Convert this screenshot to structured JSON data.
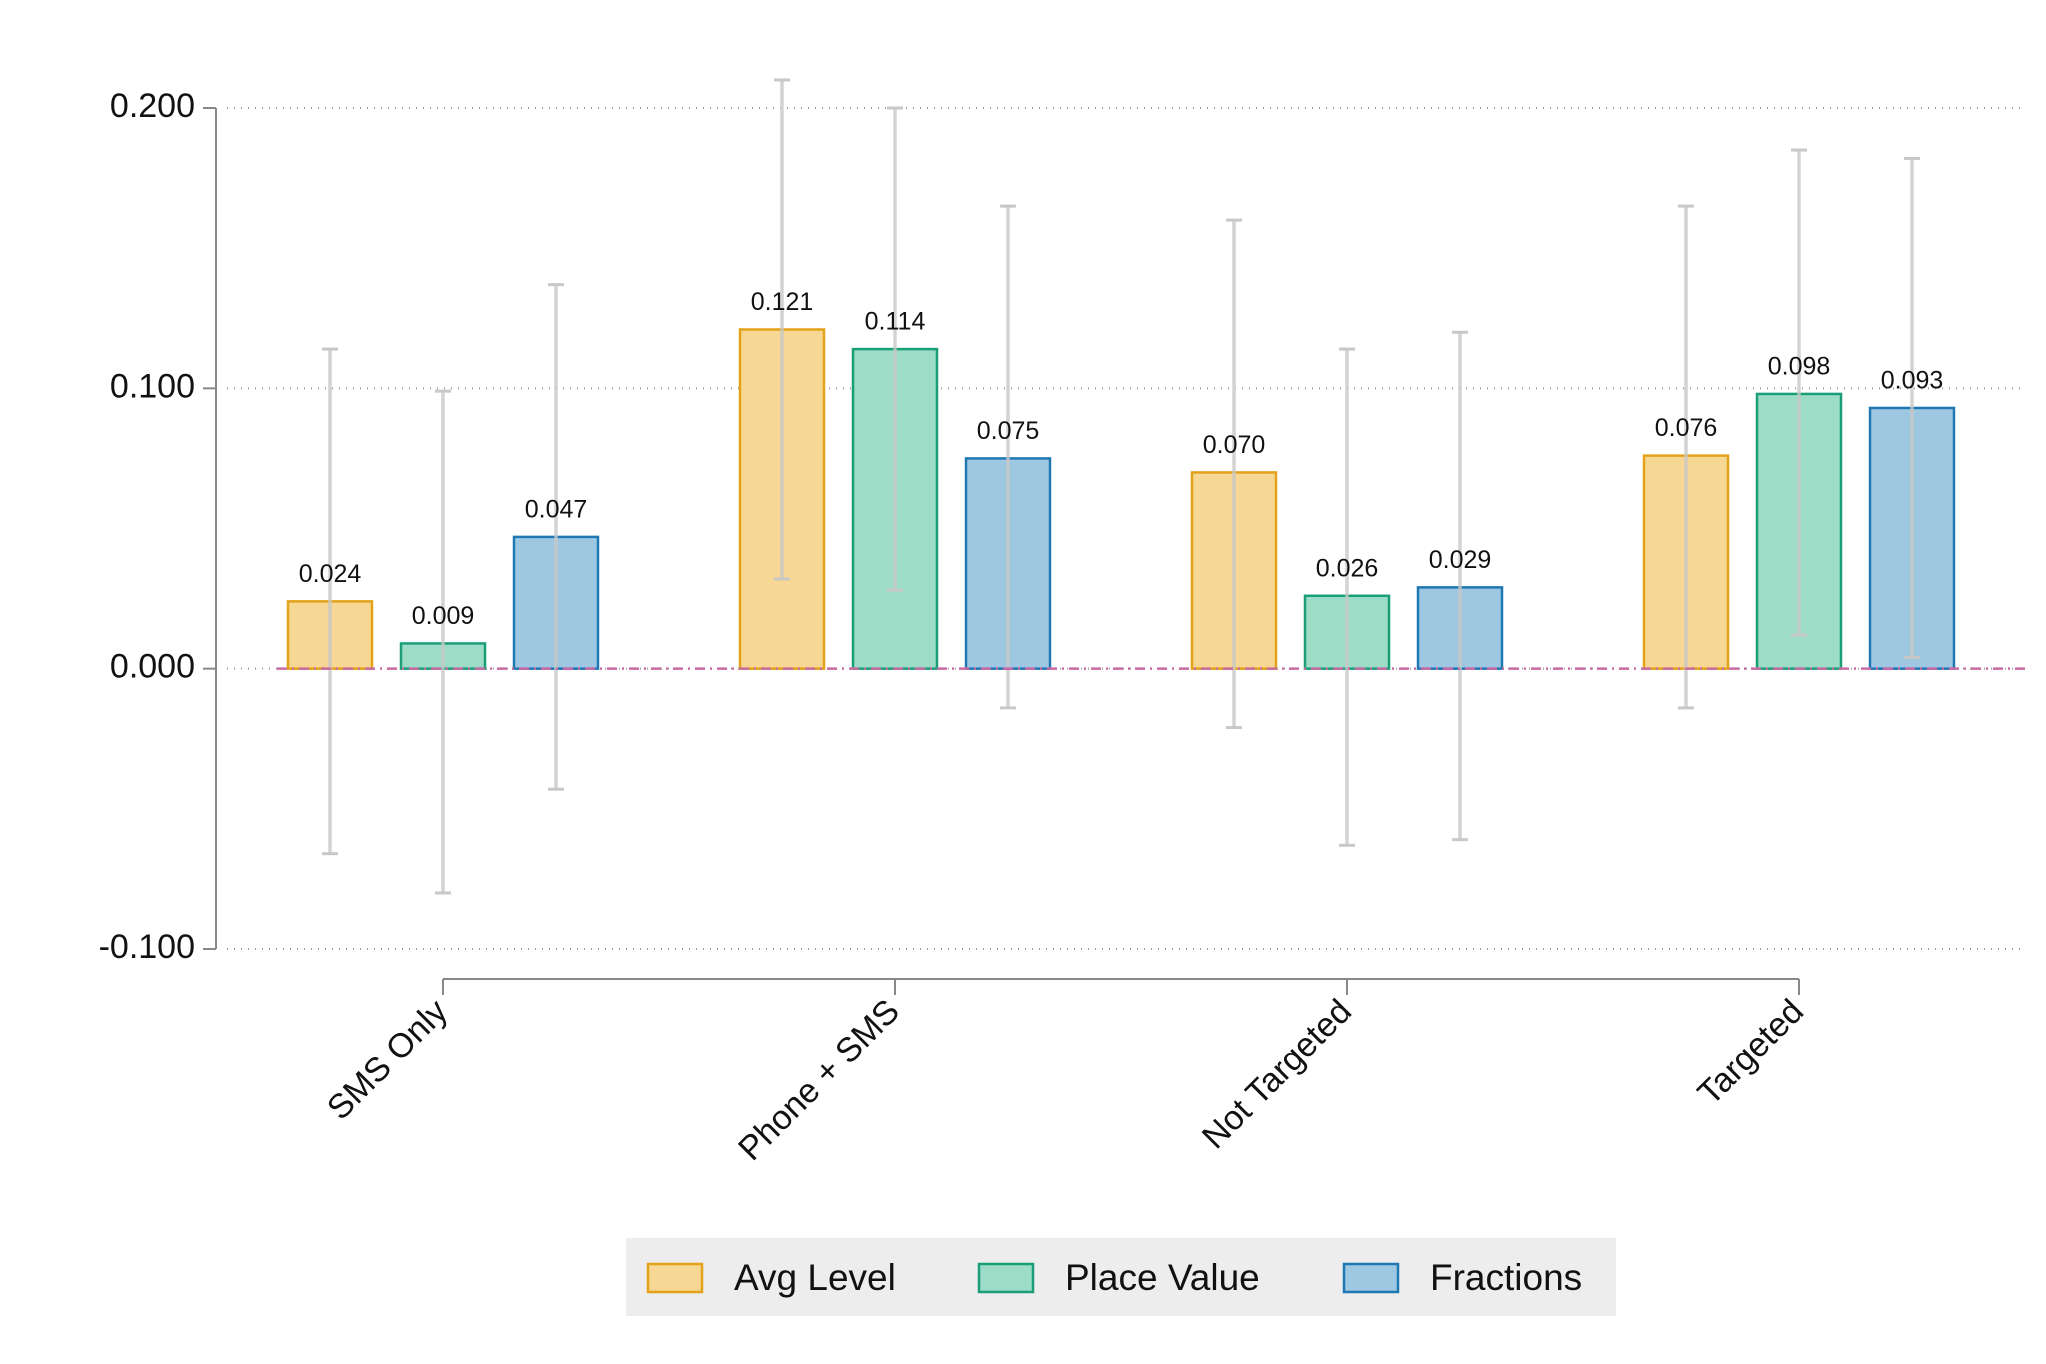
{
  "chart_data": {
    "type": "bar",
    "categories": [
      "SMS Only",
      "Phone + SMS",
      "Not Targeted",
      "Targeted"
    ],
    "series": [
      {
        "name": "Avg Level",
        "color": "#f6d794",
        "edge": "#e3a21a",
        "values": [
          0.024,
          0.121,
          0.07,
          0.076
        ],
        "value_labels": [
          "0.024",
          "0.121",
          "0.070",
          "0.076"
        ],
        "ci_low": [
          -0.066,
          0.032,
          -0.021,
          -0.014
        ],
        "ci_high": [
          0.114,
          0.21,
          0.16,
          0.165
        ]
      },
      {
        "name": "Place Value",
        "color": "#9ddcc6",
        "edge": "#1a9e77",
        "values": [
          0.009,
          0.114,
          0.026,
          0.098
        ],
        "value_labels": [
          "0.009",
          "0.114",
          "0.026",
          "0.098"
        ],
        "ci_low": [
          -0.08,
          0.028,
          -0.063,
          0.012
        ],
        "ci_high": [
          0.099,
          0.2,
          0.114,
          0.185
        ]
      },
      {
        "name": "Fractions",
        "color": "#9ec8e2",
        "edge": "#1f78b4",
        "values": [
          0.047,
          0.075,
          0.029,
          0.093
        ],
        "value_labels": [
          "0.047",
          "0.075",
          "0.029",
          "0.093"
        ],
        "ci_low": [
          -0.043,
          -0.014,
          -0.061,
          0.004
        ],
        "ci_high": [
          0.137,
          0.165,
          0.12,
          0.182
        ]
      }
    ],
    "ylim": [
      -0.1,
      0.2
    ],
    "yticks": [
      {
        "value": -0.1,
        "label": "-0.100"
      },
      {
        "value": 0,
        "label": "0.000"
      },
      {
        "value": 0.1,
        "label": "0.100"
      },
      {
        "value": 0.2,
        "label": "0.200"
      }
    ],
    "hline": 0,
    "hline_color": "#c96aa3",
    "grid": true,
    "legend": "bottom"
  }
}
